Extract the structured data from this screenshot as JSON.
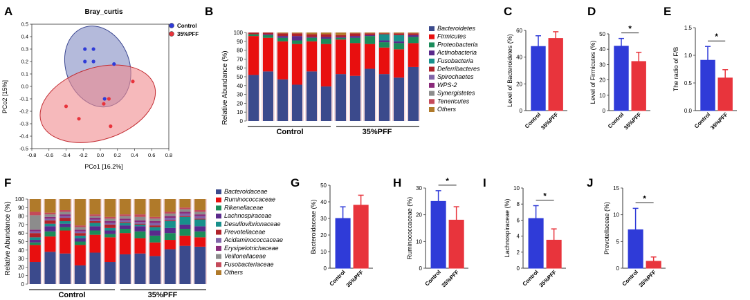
{
  "colors": {
    "control": "#2f3bd8",
    "pff": "#e8343c",
    "ellipse_control": "#8c95c8",
    "ellipse_pff": "#f08a8e",
    "taxa_A": [
      "#3b4a8c",
      "#e80f0f",
      "#1a8c5a",
      "#5a2a8c",
      "#18908c",
      "#b0222a",
      "#8064a8",
      "#8a2a7a",
      "#8c8c8c",
      "#c44a5a",
      "#b07a2a"
    ],
    "taxa_F": [
      "#3b4a8c",
      "#e80f0f",
      "#1a8c5a",
      "#5a2a8c",
      "#18908c",
      "#b0222a",
      "#8064a8",
      "#8a2a7a",
      "#8c8c8c",
      "#c44a5a",
      "#b07a2a"
    ]
  },
  "panels": {
    "A": {
      "letter": "A",
      "chart_data": {
        "type": "scatter",
        "title": "Bray_curtis",
        "xlabel": "PCo1 [16.2%]",
        "ylabel": "PCo2 [15%]",
        "xlim": [
          -0.8,
          0.8
        ],
        "ylim": [
          -0.5,
          0.5
        ],
        "xticks": [
          "-0.8",
          "-0.6",
          "-0.4",
          "-0.2",
          "0.0",
          "0.2",
          "0.4",
          "0.6",
          "0.8"
        ],
        "yticks": [
          "0.5",
          "0.4",
          "0.3",
          "0.2",
          "0.1",
          "0.0",
          "-0.1",
          "-0.2",
          "-0.3",
          "-0.4",
          "-0.5"
        ],
        "legend": [
          "Control",
          "35%PFF"
        ],
        "series": [
          {
            "name": "Control",
            "points": [
              [
                -0.18,
                0.3
              ],
              [
                -0.08,
                0.3
              ],
              [
                -0.18,
                0.2
              ],
              [
                -0.08,
                0.2
              ],
              [
                0.16,
                0.18
              ],
              [
                0.05,
                -0.1
              ]
            ]
          },
          {
            "name": "35%PFF",
            "points": [
              [
                0.1,
                -0.1
              ],
              [
                0.38,
                0.04
              ],
              [
                0.04,
                -0.14
              ],
              [
                -0.4,
                -0.16
              ],
              [
                -0.25,
                -0.26
              ],
              [
                0.12,
                -0.32
              ]
            ]
          }
        ]
      }
    },
    "B": {
      "letter": "B",
      "chart_data": {
        "type": "bar",
        "stacked": true,
        "ylabel": "Relative Abundance (%)",
        "ylim": [
          0,
          100
        ],
        "yticks": [
          "0",
          "10",
          "20",
          "30",
          "40",
          "50",
          "60",
          "70",
          "80",
          "90",
          "100"
        ],
        "groups": [
          {
            "label": "Control"
          },
          {
            "label": "35%PFF"
          }
        ],
        "legend": [
          "Bacteroidetes",
          "Firmicutes",
          "Proteobacteria",
          "Actinobacteria",
          "Fusobacteria",
          "Deferribacteres",
          "Spirochaetes",
          "WPS-2",
          "Synergistetes",
          "Tenericutes",
          "Others"
        ],
        "samples": [
          [
            52,
            44,
            2,
            0,
            0,
            2,
            0,
            0,
            0,
            0,
            0
          ],
          [
            56,
            38,
            3,
            1,
            0,
            2,
            0,
            0,
            0,
            0,
            0
          ],
          [
            47,
            43,
            4,
            2,
            0,
            3,
            0,
            0,
            0,
            0,
            1
          ],
          [
            41,
            46,
            4,
            5,
            0,
            3,
            0,
            0,
            0,
            0,
            1
          ],
          [
            56,
            34,
            4,
            1,
            0,
            3,
            0,
            0,
            0,
            0,
            2
          ],
          [
            39,
            48,
            6,
            2,
            0,
            3,
            0,
            0,
            0,
            0,
            2
          ],
          [
            53,
            39,
            2,
            1,
            0,
            2,
            0,
            0,
            0,
            0,
            3
          ],
          [
            51,
            37,
            6,
            2,
            0,
            3,
            0,
            0,
            0,
            0,
            1
          ],
          [
            59,
            28,
            9,
            1,
            0,
            2,
            0,
            0,
            0,
            0,
            1
          ],
          [
            53,
            30,
            6,
            2,
            7,
            1,
            0,
            0,
            0,
            0,
            1
          ],
          [
            49,
            32,
            7,
            2,
            7,
            2,
            0,
            0,
            0,
            0,
            1
          ],
          [
            61,
            27,
            7,
            2,
            0,
            2,
            0,
            0,
            0,
            0,
            1
          ]
        ]
      }
    },
    "C": {
      "letter": "C",
      "chart_data": {
        "type": "bar",
        "ylabel": "Level of Bacteroidetes (%)",
        "categories": [
          "Control",
          "35%PFF"
        ],
        "values": [
          48,
          54
        ],
        "errors": [
          8,
          5
        ],
        "ylim": [
          0,
          60
        ],
        "yticks": [
          "0",
          "20",
          "40",
          "60"
        ],
        "sig": ""
      }
    },
    "D": {
      "letter": "D",
      "chart_data": {
        "type": "bar",
        "ylabel": "Level of Firmicutes (%)",
        "categories": [
          "Control",
          "35%PFF"
        ],
        "values": [
          42,
          32
        ],
        "errors": [
          5,
          6
        ],
        "ylim": [
          0,
          50
        ],
        "yticks": [
          "0",
          "10",
          "20",
          "30",
          "40",
          "50"
        ],
        "sig": "*"
      }
    },
    "E": {
      "letter": "E",
      "chart_data": {
        "type": "bar",
        "ylabel": "The radio of F/B",
        "categories": [
          "Control",
          "35%PFF"
        ],
        "values": [
          0.91,
          0.59
        ],
        "errors": [
          0.25,
          0.15
        ],
        "ylim": [
          0,
          1.5
        ],
        "yticks": [
          "0.0",
          "0.5",
          "1.0",
          "1.5"
        ],
        "sig": "*"
      }
    },
    "F": {
      "letter": "F",
      "chart_data": {
        "type": "bar",
        "stacked": true,
        "ylabel": "Relative Abundance (%)",
        "ylim": [
          0,
          100
        ],
        "yticks": [
          "0",
          "10",
          "20",
          "30",
          "40",
          "50",
          "60",
          "70",
          "80",
          "90",
          "100"
        ],
        "groups": [
          {
            "label": "Control"
          },
          {
            "label": "35%PFF"
          }
        ],
        "legend": [
          "Bacteroidaceae",
          "Ruminococcaceae",
          "Rikenellaceae",
          "Lachnospiraceae",
          "Desulfovibrionaceae",
          "Prevotellaceae",
          "Acidaminococcaceae",
          "Erysipelotrichaceae",
          "Veillonellaceae",
          "Fusobacteriaceae",
          "Others"
        ],
        "samples": [
          [
            26,
            20,
            3,
            3,
            3,
            5,
            2,
            2,
            17,
            4,
            15
          ],
          [
            38,
            18,
            6,
            6,
            3,
            4,
            2,
            2,
            3,
            2,
            16
          ],
          [
            36,
            27,
            4,
            4,
            3,
            4,
            2,
            2,
            3,
            2,
            13
          ],
          [
            22,
            24,
            4,
            4,
            3,
            3,
            2,
            2,
            3,
            2,
            31
          ],
          [
            37,
            21,
            5,
            5,
            4,
            2,
            2,
            2,
            2,
            2,
            18
          ],
          [
            26,
            29,
            4,
            4,
            3,
            4,
            2,
            2,
            3,
            2,
            21
          ],
          [
            35,
            25,
            5,
            4,
            3,
            1,
            2,
            2,
            3,
            2,
            18
          ],
          [
            36,
            18,
            8,
            6,
            2,
            1,
            2,
            2,
            4,
            3,
            18
          ],
          [
            33,
            16,
            8,
            6,
            4,
            2,
            3,
            2,
            3,
            2,
            21
          ],
          [
            41,
            11,
            8,
            6,
            8,
            1,
            3,
            2,
            3,
            2,
            15
          ],
          [
            45,
            12,
            8,
            5,
            9,
            1,
            3,
            2,
            3,
            2,
            10
          ],
          [
            44,
            11,
            7,
            6,
            8,
            1,
            3,
            2,
            3,
            2,
            13
          ]
        ]
      }
    },
    "G": {
      "letter": "G",
      "chart_data": {
        "type": "bar",
        "ylabel": "Bacteroidaceae (%)",
        "categories": [
          "Control",
          "35%PFF"
        ],
        "values": [
          30,
          38
        ],
        "errors": [
          7,
          6
        ],
        "ylim": [
          0,
          50
        ],
        "yticks": [
          "0",
          "10",
          "20",
          "30",
          "40",
          "50"
        ],
        "sig": ""
      }
    },
    "H": {
      "letter": "H",
      "chart_data": {
        "type": "bar",
        "ylabel": "Ruminococcaceae (%)",
        "categories": [
          "Control",
          "35%PFF"
        ],
        "values": [
          25,
          18
        ],
        "errors": [
          4,
          5
        ],
        "ylim": [
          0,
          30
        ],
        "yticks": [
          "0",
          "10",
          "20",
          "30"
        ],
        "sig": "*"
      }
    },
    "I": {
      "letter": "I",
      "chart_data": {
        "type": "bar",
        "ylabel": "Lachnospiraceae (%)",
        "categories": [
          "Control",
          "35%PFF"
        ],
        "values": [
          6.2,
          3.5
        ],
        "errors": [
          1.6,
          1.4
        ],
        "ylim": [
          0,
          10
        ],
        "yticks": [
          "0",
          "2",
          "4",
          "6",
          "8",
          "10"
        ],
        "sig": "*"
      }
    },
    "J": {
      "letter": "J",
      "chart_data": {
        "type": "bar",
        "ylabel": "Prevotellaceae (%)",
        "categories": [
          "Control",
          "35%PFF"
        ],
        "values": [
          7.2,
          1.3
        ],
        "errors": [
          4,
          0.8
        ],
        "ylim": [
          0,
          15
        ],
        "yticks": [
          "0",
          "5",
          "10",
          "15"
        ],
        "sig": "*"
      }
    }
  }
}
